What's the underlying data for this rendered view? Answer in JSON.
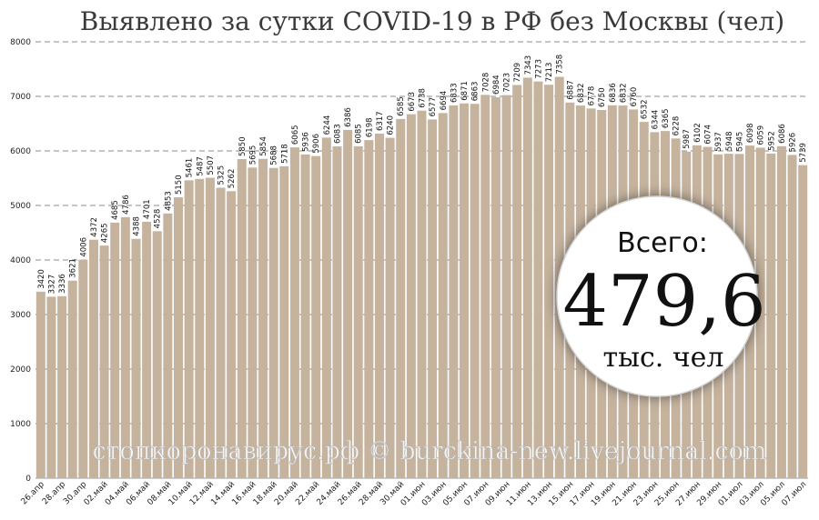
{
  "chart_data": {
    "type": "bar",
    "title": "Выявлено за сутки COVID-19 в РФ без Москвы (чел)",
    "ylim": [
      0,
      8000
    ],
    "yticks": [
      0,
      1000,
      2000,
      3000,
      4000,
      5000,
      6000,
      7000,
      8000
    ],
    "grid": true,
    "xtick_labels": [
      "26.апр",
      "28.апр",
      "30.апр",
      "02.май",
      "04.май",
      "06.май",
      "08.май",
      "10.май",
      "12.май",
      "14.май",
      "16.май",
      "18.май",
      "20.май",
      "22.май",
      "24.май",
      "26.май",
      "28.май",
      "30.май",
      "01.июн",
      "03.июн",
      "05.июн",
      "07.июн",
      "09.июн",
      "11.июн",
      "13.июн",
      "15.июн",
      "17.июн",
      "19.июн",
      "21.июн",
      "23.июн",
      "25.июн",
      "27.июн",
      "29.июн",
      "01.июл",
      "03.июл",
      "05.июл",
      "07.июл"
    ],
    "values": [
      3420,
      3327,
      3336,
      3621,
      4006,
      4372,
      4265,
      4685,
      4786,
      4388,
      4701,
      4528,
      4853,
      5150,
      5461,
      5487,
      5507,
      5325,
      5262,
      5850,
      5695,
      5854,
      5688,
      5718,
      6065,
      5936,
      5906,
      6244,
      6083,
      6386,
      6085,
      6198,
      6317,
      6240,
      6585,
      6673,
      6738,
      6577,
      6694,
      6833,
      6871,
      6863,
      7028,
      6984,
      7023,
      7209,
      7343,
      7273,
      7213,
      7358,
      6887,
      6832,
      6778,
      6750,
      6836,
      6832,
      6760,
      6532,
      6344,
      6365,
      6228,
      5987,
      6102,
      6074,
      5937,
      5948,
      5945,
      6098,
      6059,
      5952,
      6086,
      5926,
      5739
    ]
  },
  "total": {
    "label": "Всего:",
    "value": "479,6",
    "unit": "тыс. чел"
  },
  "watermark": "стопкоронавирус.рф © burckina-new.livejournal.com",
  "colors": {
    "bar": "#c5b39e",
    "circle": "#ffffff",
    "grid": "#8a8a8a"
  }
}
